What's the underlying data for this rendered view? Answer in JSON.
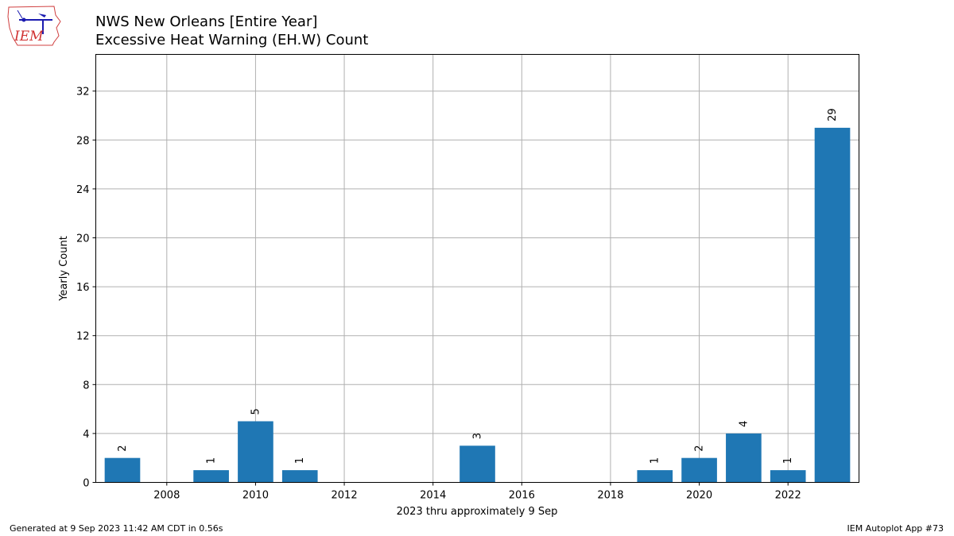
{
  "header": {
    "title_line1": "NWS New Orleans [Entire Year]",
    "title_line2": "Excessive Heat Warning (EH.W) Count"
  },
  "logo": {
    "text": "IEM"
  },
  "footer": {
    "generated": "Generated at 9 Sep 2023 11:42 AM CDT in 0.56s",
    "app": "IEM Autoplot App #73"
  },
  "chart_data": {
    "type": "bar",
    "title": "NWS New Orleans [Entire Year]\nExcessive Heat Warning (EH.W) Count",
    "xlabel": "2023 thru approximately 9 Sep",
    "ylabel": "Yearly Count",
    "x": [
      2007,
      2009,
      2010,
      2011,
      2015,
      2019,
      2020,
      2021,
      2022,
      2023
    ],
    "values": [
      2,
      1,
      5,
      1,
      3,
      1,
      2,
      4,
      1,
      29
    ],
    "xlim": [
      2006.4,
      2023.6
    ],
    "ylim": [
      0,
      35
    ],
    "xticks": [
      2008,
      2010,
      2012,
      2014,
      2016,
      2018,
      2020,
      2022
    ],
    "yticks": [
      0,
      4,
      8,
      12,
      16,
      20,
      24,
      28,
      32
    ],
    "grid": true,
    "bar_color": "#1f77b4",
    "data_labels": true
  }
}
